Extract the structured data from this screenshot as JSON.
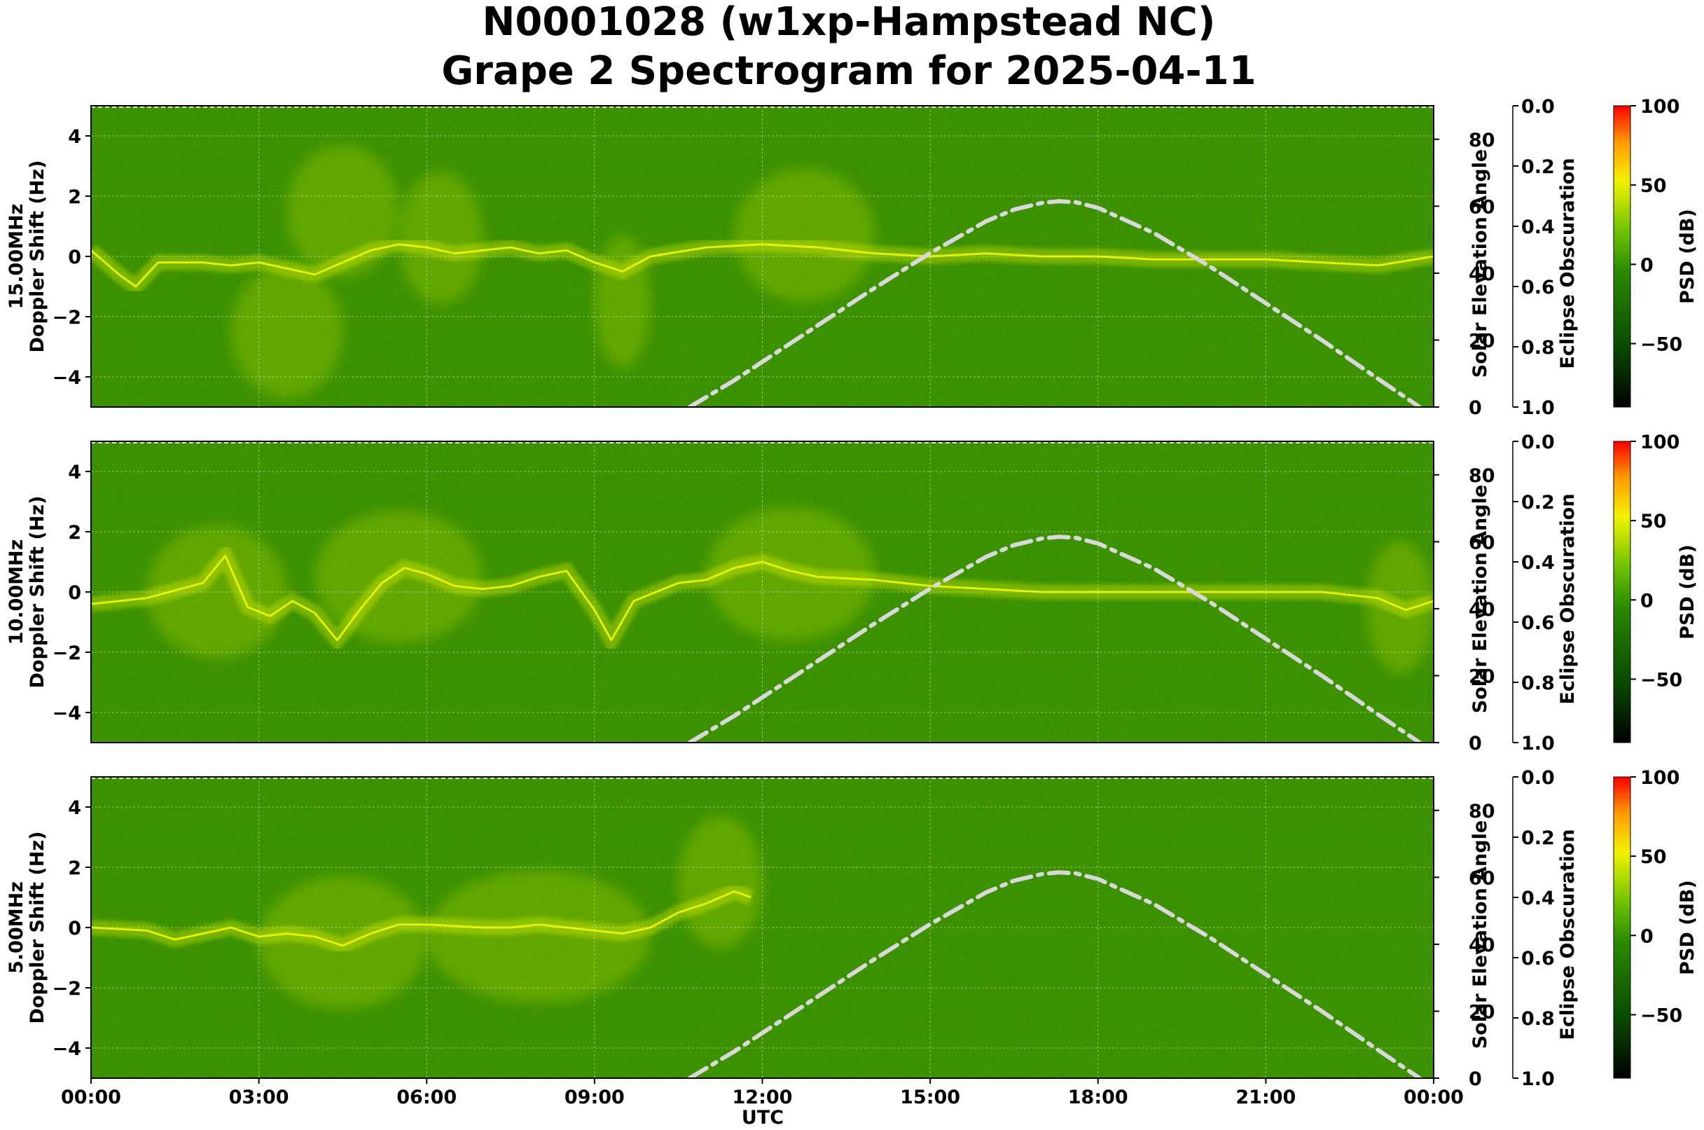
{
  "title_line1": "N0001028 (w1xp-Hampstead NC)",
  "title_line2": "Grape 2 Spectrogram for 2025-04-11",
  "colors": {
    "background_green": "#2f8a00",
    "signal_yellow": "#e8f500",
    "elevation_curve": "#d8d8d8",
    "grid": "#ffffff"
  },
  "chart_data": [
    {
      "type": "heatmap",
      "frequency": "15.00MHz",
      "ylabel_line1": "15.00MHz",
      "ylabel_line2": "Doppler Shift (Hz)",
      "ylim": [
        -5,
        5
      ],
      "yticks": [
        "4",
        "2",
        "0",
        "−2",
        "−4"
      ],
      "ytick_values": [
        4,
        2,
        0,
        -2,
        -4
      ],
      "right_label": "Solar Elevation Angle",
      "right_ylim": [
        0,
        90
      ],
      "right_ticks": [
        "80",
        "60",
        "40",
        "20",
        "0"
      ],
      "right_tick_values": [
        80,
        60,
        40,
        20,
        0
      ],
      "eclipse_label": "Eclipse Obscuration",
      "eclipse_ticks": [
        "0.0",
        "0.2",
        "0.4",
        "0.6",
        "0.8",
        "1.0"
      ],
      "colorbar_label": "PSD (dB)",
      "colorbar_ticks": [
        "100",
        "50",
        "0",
        "−50"
      ],
      "colorbar_range": [
        -90,
        100
      ],
      "carrier_trace": [
        [
          0,
          0.2
        ],
        [
          0.5,
          -0.6
        ],
        [
          0.8,
          -1.0
        ],
        [
          1.2,
          -0.2
        ],
        [
          2,
          -0.2
        ],
        [
          2.5,
          -0.3
        ],
        [
          3,
          -0.2
        ],
        [
          3.5,
          -0.4
        ],
        [
          4,
          -0.6
        ],
        [
          4.5,
          -0.2
        ],
        [
          5,
          0.2
        ],
        [
          5.5,
          0.4
        ],
        [
          6,
          0.3
        ],
        [
          6.5,
          0.1
        ],
        [
          7,
          0.2
        ],
        [
          7.5,
          0.3
        ],
        [
          8,
          0.1
        ],
        [
          8.5,
          0.2
        ],
        [
          9,
          -0.2
        ],
        [
          9.5,
          -0.5
        ],
        [
          10,
          0.0
        ],
        [
          11,
          0.3
        ],
        [
          12,
          0.4
        ],
        [
          13,
          0.3
        ],
        [
          14,
          0.1
        ],
        [
          15,
          0.0
        ],
        [
          16,
          0.1
        ],
        [
          17,
          0.0
        ],
        [
          18,
          0.0
        ],
        [
          19,
          -0.1
        ],
        [
          20,
          -0.1
        ],
        [
          21,
          -0.1
        ],
        [
          22,
          -0.2
        ],
        [
          23,
          -0.3
        ],
        [
          24,
          0.0
        ]
      ],
      "noise_bands": [
        [
          2.5,
          4.5,
          -2.5
        ],
        [
          3.5,
          5.5,
          1.5
        ],
        [
          5.5,
          7,
          0.6
        ],
        [
          9,
          10,
          -1.5
        ],
        [
          11.5,
          14,
          0.7
        ]
      ]
    },
    {
      "type": "heatmap",
      "frequency": "10.00MHz",
      "ylabel_line1": "10.00MHz",
      "ylabel_line2": "Doppler Shift (Hz)",
      "ylim": [
        -5,
        5
      ],
      "yticks": [
        "4",
        "2",
        "0",
        "−2",
        "−4"
      ],
      "ytick_values": [
        4,
        2,
        0,
        -2,
        -4
      ],
      "right_label": "Solar Elevation Angle",
      "right_ylim": [
        0,
        90
      ],
      "right_ticks": [
        "80",
        "60",
        "40",
        "20",
        "0"
      ],
      "right_tick_values": [
        80,
        60,
        40,
        20,
        0
      ],
      "eclipse_label": "Eclipse Obscuration",
      "eclipse_ticks": [
        "0.0",
        "0.2",
        "0.4",
        "0.6",
        "0.8",
        "1.0"
      ],
      "colorbar_label": "PSD (dB)",
      "colorbar_ticks": [
        "100",
        "50",
        "0",
        "−50"
      ],
      "colorbar_range": [
        -90,
        100
      ],
      "carrier_trace": [
        [
          0,
          -0.4
        ],
        [
          1,
          -0.2
        ],
        [
          2,
          0.3
        ],
        [
          2.4,
          1.2
        ],
        [
          2.8,
          -0.5
        ],
        [
          3.2,
          -0.8
        ],
        [
          3.6,
          -0.3
        ],
        [
          4,
          -0.7
        ],
        [
          4.4,
          -1.6
        ],
        [
          4.8,
          -0.6
        ],
        [
          5.2,
          0.3
        ],
        [
          5.6,
          0.8
        ],
        [
          6,
          0.6
        ],
        [
          6.5,
          0.2
        ],
        [
          7,
          0.1
        ],
        [
          7.5,
          0.2
        ],
        [
          8,
          0.5
        ],
        [
          8.5,
          0.7
        ],
        [
          9,
          -0.6
        ],
        [
          9.3,
          -1.6
        ],
        [
          9.7,
          -0.3
        ],
        [
          10.5,
          0.3
        ],
        [
          11,
          0.4
        ],
        [
          11.5,
          0.8
        ],
        [
          12,
          1.0
        ],
        [
          12.5,
          0.7
        ],
        [
          13,
          0.5
        ],
        [
          14,
          0.4
        ],
        [
          15,
          0.2
        ],
        [
          16,
          0.1
        ],
        [
          17,
          0.0
        ],
        [
          18,
          0.0
        ],
        [
          19,
          0.0
        ],
        [
          20,
          0.0
        ],
        [
          21,
          0.0
        ],
        [
          22,
          0.0
        ],
        [
          23,
          -0.2
        ],
        [
          23.5,
          -0.6
        ],
        [
          24,
          -0.3
        ]
      ],
      "noise_bands": [
        [
          1,
          3.5,
          0
        ],
        [
          4,
          7,
          0.5
        ],
        [
          11,
          14,
          0.6
        ],
        [
          22.8,
          24,
          -0.5
        ]
      ]
    },
    {
      "type": "heatmap",
      "frequency": "5.00MHz",
      "ylabel_line1": "5.00MHz",
      "ylabel_line2": "Doppler Shift (Hz)",
      "ylim": [
        -5,
        5
      ],
      "yticks": [
        "4",
        "2",
        "0",
        "−2",
        "−4"
      ],
      "ytick_values": [
        4,
        2,
        0,
        -2,
        -4
      ],
      "right_label": "Solar Elevation Angle",
      "right_ylim": [
        0,
        90
      ],
      "right_ticks": [
        "80",
        "60",
        "40",
        "20",
        "0"
      ],
      "right_tick_values": [
        80,
        60,
        40,
        20,
        0
      ],
      "eclipse_label": "Eclipse Obscuration",
      "eclipse_ticks": [
        "0.0",
        "0.2",
        "0.4",
        "0.6",
        "0.8",
        "1.0"
      ],
      "colorbar_label": "PSD (dB)",
      "colorbar_ticks": [
        "100",
        "50",
        "0",
        "−50"
      ],
      "colorbar_range": [
        -90,
        100
      ],
      "carrier_trace": [
        [
          0,
          0.0
        ],
        [
          1,
          -0.1
        ],
        [
          1.5,
          -0.4
        ],
        [
          2,
          -0.2
        ],
        [
          2.5,
          0.0
        ],
        [
          3,
          -0.3
        ],
        [
          3.5,
          -0.2
        ],
        [
          4,
          -0.3
        ],
        [
          4.5,
          -0.6
        ],
        [
          5,
          -0.2
        ],
        [
          5.5,
          0.1
        ],
        [
          6,
          0.1
        ],
        [
          7,
          0.0
        ],
        [
          7.5,
          0.0
        ],
        [
          8,
          0.1
        ],
        [
          8.5,
          0.0
        ],
        [
          9,
          -0.1
        ],
        [
          9.5,
          -0.2
        ],
        [
          10,
          0.0
        ],
        [
          10.5,
          0.5
        ],
        [
          11,
          0.8
        ],
        [
          11.5,
          1.2
        ],
        [
          11.8,
          1.0
        ]
      ],
      "noise_bands": [
        [
          3,
          6,
          -0.5
        ],
        [
          6,
          10,
          -0.3
        ],
        [
          10.5,
          12,
          1.5
        ]
      ]
    }
  ],
  "x_axis": {
    "label": "UTC",
    "xlim": [
      0,
      24
    ],
    "ticks": [
      "00:00",
      "03:00",
      "06:00",
      "09:00",
      "12:00",
      "15:00",
      "18:00",
      "21:00",
      "00:00"
    ],
    "tick_hours": [
      0,
      3,
      6,
      9,
      12,
      15,
      18,
      21,
      24
    ]
  },
  "solar_elevation_curve": [
    [
      10.7,
      0
    ],
    [
      11.5,
      8
    ],
    [
      12,
      13.5
    ],
    [
      13,
      24.5
    ],
    [
      14,
      35.5
    ],
    [
      15,
      46
    ],
    [
      16,
      55.5
    ],
    [
      16.5,
      59
    ],
    [
      17,
      61
    ],
    [
      17.3,
      61.5
    ],
    [
      17.6,
      61.2
    ],
    [
      18,
      59.5
    ],
    [
      19,
      52
    ],
    [
      20,
      42
    ],
    [
      21,
      31
    ],
    [
      22,
      20
    ],
    [
      23,
      8.5
    ],
    [
      23.75,
      0
    ]
  ]
}
